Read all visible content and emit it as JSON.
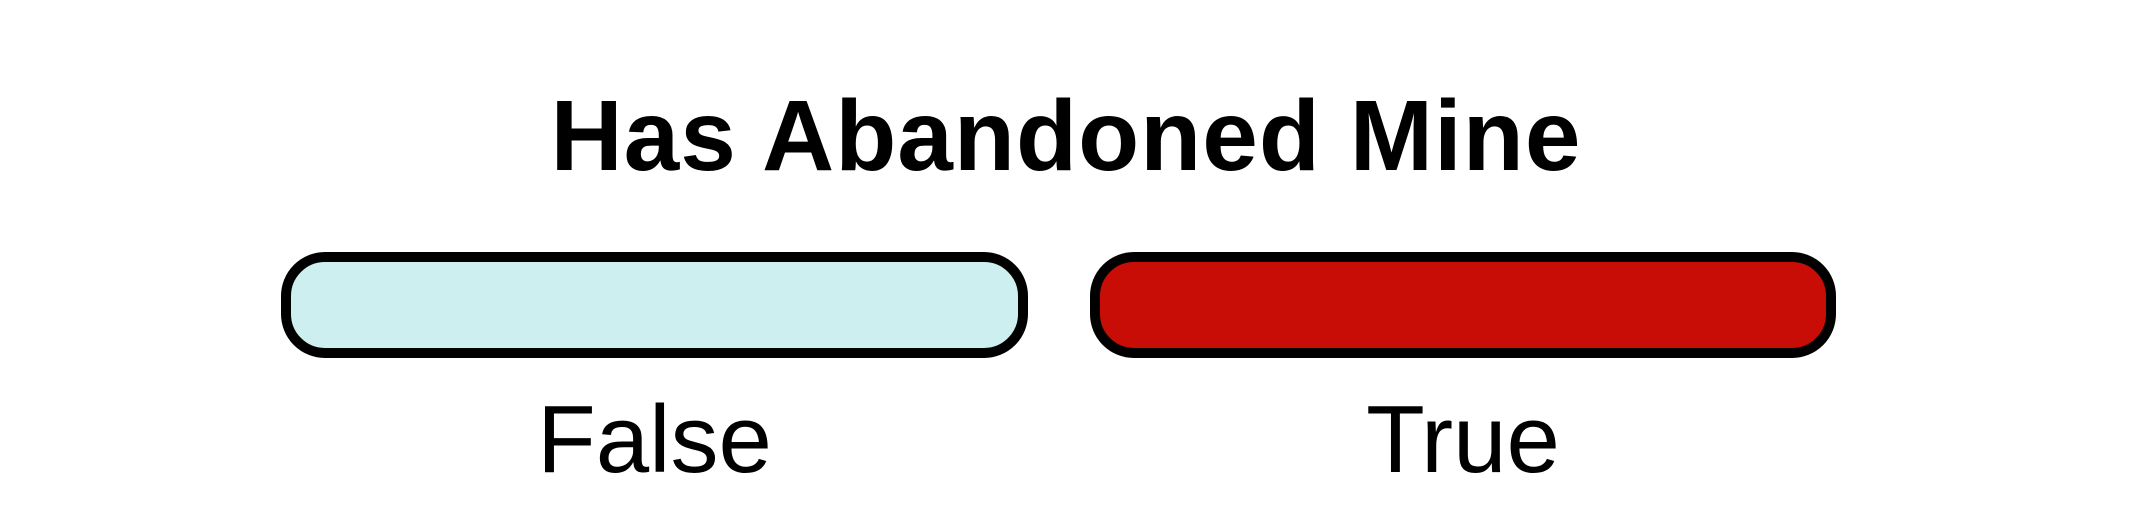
{
  "legend": {
    "title": "Has Abandoned Mine",
    "items": [
      {
        "label": "False",
        "color": "#cdeff0"
      },
      {
        "label": "True",
        "color": "#c80d06"
      }
    ],
    "border_color": "#000000"
  }
}
